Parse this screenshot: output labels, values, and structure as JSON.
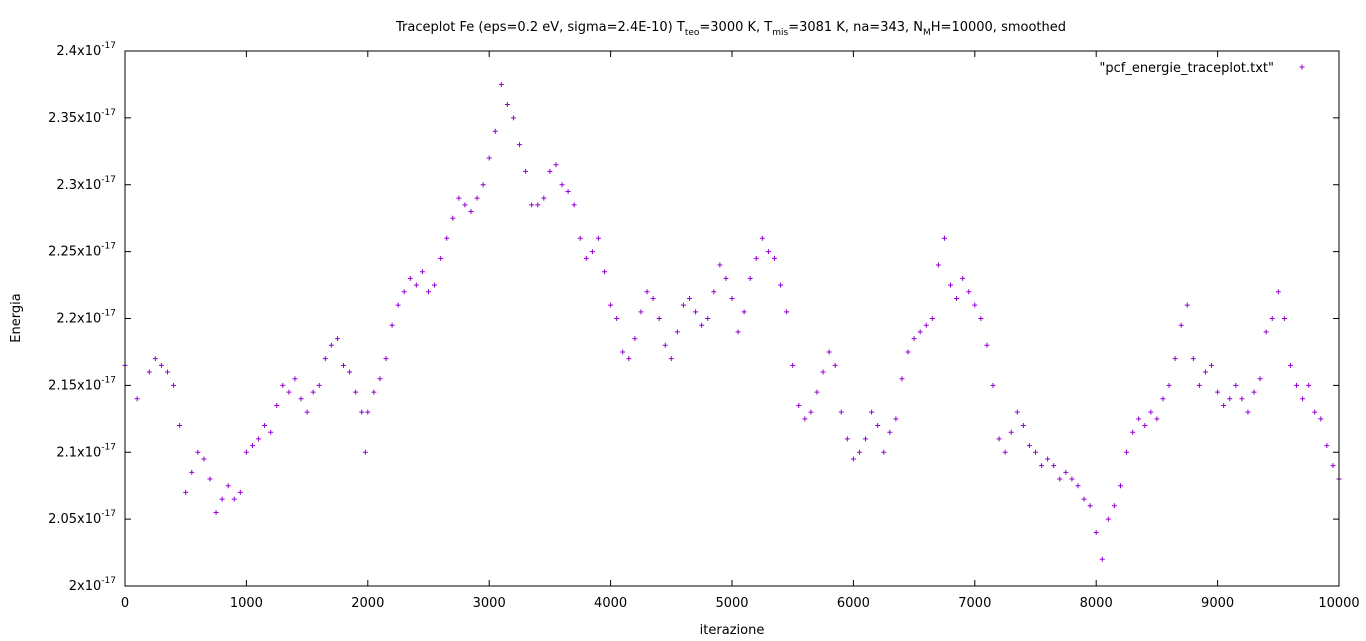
{
  "chart_data": {
    "type": "scatter",
    "title": {
      "prefix": "Traceplot Fe (eps=0.2 eV, sigma=2.4E-10) T",
      "teo_sub": "teo",
      "mid1": "=3000 K, T",
      "mis_sub": "mis",
      "mid2": "=3081 K, na=343, N",
      "n_sub": "M",
      "suffix": "H=10000, smoothed"
    },
    "xlabel": "iterazione",
    "ylabel": "Energia",
    "xlim": [
      0,
      10000
    ],
    "ylim": [
      2e-17,
      2.4e-17
    ],
    "x_ticks": [
      "0",
      "1000",
      "2000",
      "3000",
      "4000",
      "5000",
      "6000",
      "7000",
      "8000",
      "9000",
      "10000"
    ],
    "y_ticks": [
      {
        "mantissa": "2",
        "exp": "-17",
        "value": 2e-17
      },
      {
        "mantissa": "2.05",
        "exp": "-17",
        "value": 2.05e-17
      },
      {
        "mantissa": "2.1",
        "exp": "-17",
        "value": 2.1e-17
      },
      {
        "mantissa": "2.15",
        "exp": "-17",
        "value": 2.15e-17
      },
      {
        "mantissa": "2.2",
        "exp": "-17",
        "value": 2.2e-17
      },
      {
        "mantissa": "2.25",
        "exp": "-17",
        "value": 2.25e-17
      },
      {
        "mantissa": "2.3",
        "exp": "-17",
        "value": 2.3e-17
      },
      {
        "mantissa": "2.35",
        "exp": "-17",
        "value": 2.35e-17
      },
      {
        "mantissa": "2.4",
        "exp": "-17",
        "value": 2.4e-17
      }
    ],
    "y_tick_times": "x10",
    "legend": {
      "position": "top-right",
      "label": "\"pcf_energie_traceplot.txt\""
    },
    "series": [
      {
        "name": "\"pcf_energie_traceplot.txt\"",
        "color": "#9400d3",
        "marker": "plus",
        "x": [
          0,
          100,
          200,
          250,
          300,
          350,
          400,
          450,
          500,
          550,
          600,
          650,
          700,
          750,
          800,
          850,
          900,
          950,
          1000,
          1050,
          1100,
          1150,
          1200,
          1250,
          1300,
          1350,
          1400,
          1450,
          1500,
          1550,
          1600,
          1650,
          1700,
          1750,
          1800,
          1850,
          1900,
          1950,
          1980,
          2000,
          2050,
          2100,
          2150,
          2200,
          2250,
          2300,
          2350,
          2400,
          2450,
          2500,
          2550,
          2600,
          2650,
          2700,
          2750,
          2800,
          2850,
          2900,
          2950,
          3000,
          3050,
          3100,
          3150,
          3200,
          3250,
          3300,
          3350,
          3400,
          3450,
          3500,
          3550,
          3600,
          3650,
          3700,
          3750,
          3800,
          3850,
          3900,
          3950,
          4000,
          4050,
          4100,
          4150,
          4200,
          4250,
          4300,
          4350,
          4400,
          4450,
          4500,
          4550,
          4600,
          4650,
          4700,
          4750,
          4800,
          4850,
          4900,
          4950,
          5000,
          5050,
          5100,
          5150,
          5200,
          5250,
          5300,
          5350,
          5400,
          5450,
          5500,
          5550,
          5600,
          5650,
          5700,
          5750,
          5800,
          5850,
          5900,
          5950,
          6000,
          6050,
          6100,
          6150,
          6200,
          6250,
          6300,
          6350,
          6400,
          6450,
          6500,
          6550,
          6600,
          6650,
          6700,
          6750,
          6800,
          6850,
          6900,
          6950,
          7000,
          7050,
          7100,
          7150,
          7200,
          7250,
          7300,
          7350,
          7400,
          7450,
          7500,
          7550,
          7600,
          7650,
          7700,
          7750,
          7800,
          7850,
          7900,
          7950,
          8000,
          8050,
          8100,
          8150,
          8200,
          8250,
          8300,
          8350,
          8400,
          8450,
          8500,
          8550,
          8600,
          8650,
          8700,
          8750,
          8800,
          8850,
          8900,
          8950,
          9000,
          9050,
          9100,
          9150,
          9200,
          9250,
          9300,
          9350,
          9400,
          9450,
          9500,
          9550,
          9600,
          9650,
          9700,
          9750,
          9800,
          9850,
          9900,
          9950,
          10000
        ],
        "y": [
          2.165e-17,
          2.14e-17,
          2.16e-17,
          2.17e-17,
          2.165e-17,
          2.16e-17,
          2.15e-17,
          2.12e-17,
          2.07e-17,
          2.085e-17,
          2.1e-17,
          2.095e-17,
          2.08e-17,
          2.055e-17,
          2.065e-17,
          2.075e-17,
          2.065e-17,
          2.07e-17,
          2.1e-17,
          2.105e-17,
          2.11e-17,
          2.12e-17,
          2.115e-17,
          2.135e-17,
          2.15e-17,
          2.145e-17,
          2.155e-17,
          2.14e-17,
          2.13e-17,
          2.145e-17,
          2.15e-17,
          2.17e-17,
          2.18e-17,
          2.185e-17,
          2.165e-17,
          2.16e-17,
          2.145e-17,
          2.13e-17,
          2.1e-17,
          2.13e-17,
          2.145e-17,
          2.155e-17,
          2.17e-17,
          2.195e-17,
          2.21e-17,
          2.22e-17,
          2.23e-17,
          2.225e-17,
          2.235e-17,
          2.22e-17,
          2.225e-17,
          2.245e-17,
          2.26e-17,
          2.275e-17,
          2.29e-17,
          2.285e-17,
          2.28e-17,
          2.29e-17,
          2.3e-17,
          2.32e-17,
          2.34e-17,
          2.375e-17,
          2.36e-17,
          2.35e-17,
          2.33e-17,
          2.31e-17,
          2.285e-17,
          2.285e-17,
          2.29e-17,
          2.31e-17,
          2.315e-17,
          2.3e-17,
          2.295e-17,
          2.285e-17,
          2.26e-17,
          2.245e-17,
          2.25e-17,
          2.26e-17,
          2.235e-17,
          2.21e-17,
          2.2e-17,
          2.175e-17,
          2.17e-17,
          2.185e-17,
          2.205e-17,
          2.22e-17,
          2.215e-17,
          2.2e-17,
          2.18e-17,
          2.17e-17,
          2.19e-17,
          2.21e-17,
          2.215e-17,
          2.205e-17,
          2.195e-17,
          2.2e-17,
          2.22e-17,
          2.24e-17,
          2.23e-17,
          2.215e-17,
          2.19e-17,
          2.205e-17,
          2.23e-17,
          2.245e-17,
          2.26e-17,
          2.25e-17,
          2.245e-17,
          2.225e-17,
          2.205e-17,
          2.165e-17,
          2.135e-17,
          2.125e-17,
          2.13e-17,
          2.145e-17,
          2.16e-17,
          2.175e-17,
          2.165e-17,
          2.13e-17,
          2.11e-17,
          2.095e-17,
          2.1e-17,
          2.11e-17,
          2.13e-17,
          2.12e-17,
          2.1e-17,
          2.115e-17,
          2.125e-17,
          2.155e-17,
          2.175e-17,
          2.185e-17,
          2.19e-17,
          2.195e-17,
          2.2e-17,
          2.24e-17,
          2.26e-17,
          2.225e-17,
          2.215e-17,
          2.23e-17,
          2.22e-17,
          2.21e-17,
          2.2e-17,
          2.18e-17,
          2.15e-17,
          2.11e-17,
          2.1e-17,
          2.115e-17,
          2.13e-17,
          2.12e-17,
          2.105e-17,
          2.1e-17,
          2.09e-17,
          2.095e-17,
          2.09e-17,
          2.08e-17,
          2.085e-17,
          2.08e-17,
          2.075e-17,
          2.065e-17,
          2.06e-17,
          2.04e-17,
          2.02e-17,
          2.05e-17,
          2.06e-17,
          2.075e-17,
          2.1e-17,
          2.115e-17,
          2.125e-17,
          2.12e-17,
          2.13e-17,
          2.125e-17,
          2.14e-17,
          2.15e-17,
          2.17e-17,
          2.195e-17,
          2.21e-17,
          2.17e-17,
          2.15e-17,
          2.16e-17,
          2.165e-17,
          2.145e-17,
          2.135e-17,
          2.14e-17,
          2.15e-17,
          2.14e-17,
          2.13e-17,
          2.145e-17,
          2.155e-17,
          2.19e-17,
          2.2e-17,
          2.22e-17,
          2.2e-17,
          2.165e-17,
          2.15e-17,
          2.14e-17,
          2.15e-17,
          2.13e-17,
          2.125e-17,
          2.105e-17,
          2.09e-17,
          2.08e-17
        ]
      }
    ]
  }
}
